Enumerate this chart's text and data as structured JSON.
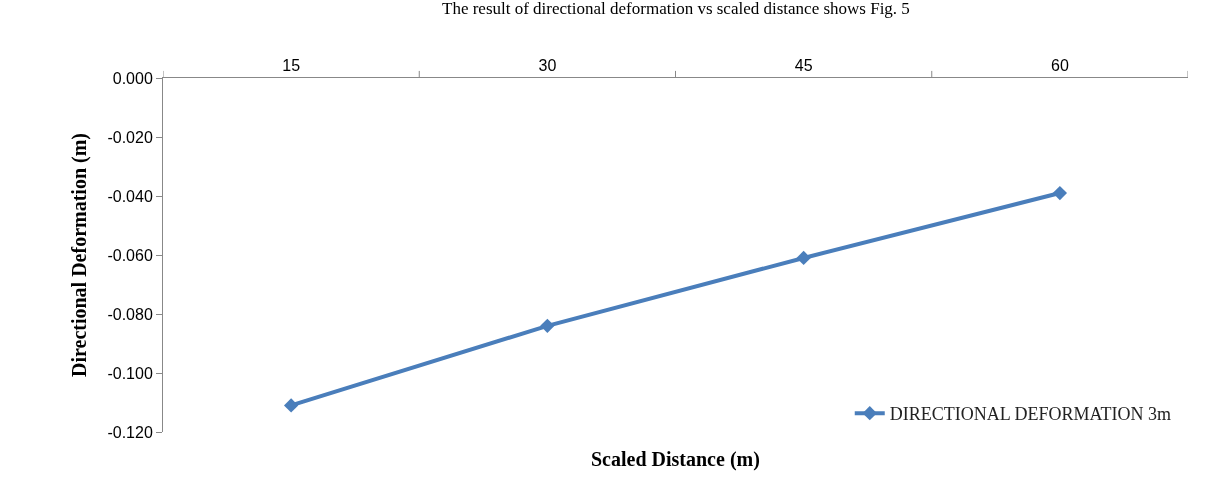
{
  "chart_data": {
    "type": "line",
    "xlabel": "Scaled Distance (m)",
    "ylabel": "Directional Deformation (m)",
    "annotations": [
      "The result of directional deformation vs scaled distance shows Fig. 5"
    ],
    "categories": [
      "15",
      "30",
      "45",
      "60"
    ],
    "series": [
      {
        "name": "DIRECTIONAL DEFORMATION 3m",
        "color": "#4a7ebb",
        "values": [
          -0.111,
          -0.084,
          -0.061,
          -0.039
        ]
      }
    ],
    "ylim": [
      -0.12,
      0.0
    ],
    "yticks": [
      {
        "value": 0.0,
        "label": "0.000"
      },
      {
        "value": -0.02,
        "label": "-0.020"
      },
      {
        "value": -0.04,
        "label": "-0.040"
      },
      {
        "value": -0.06,
        "label": "-0.060"
      },
      {
        "value": -0.08,
        "label": "-0.080"
      },
      {
        "value": -0.1,
        "label": "-0.100"
      },
      {
        "value": -0.12,
        "label": "-0.120"
      }
    ],
    "legend": "bottom right",
    "marker": "diamond",
    "line_style": "solid"
  }
}
